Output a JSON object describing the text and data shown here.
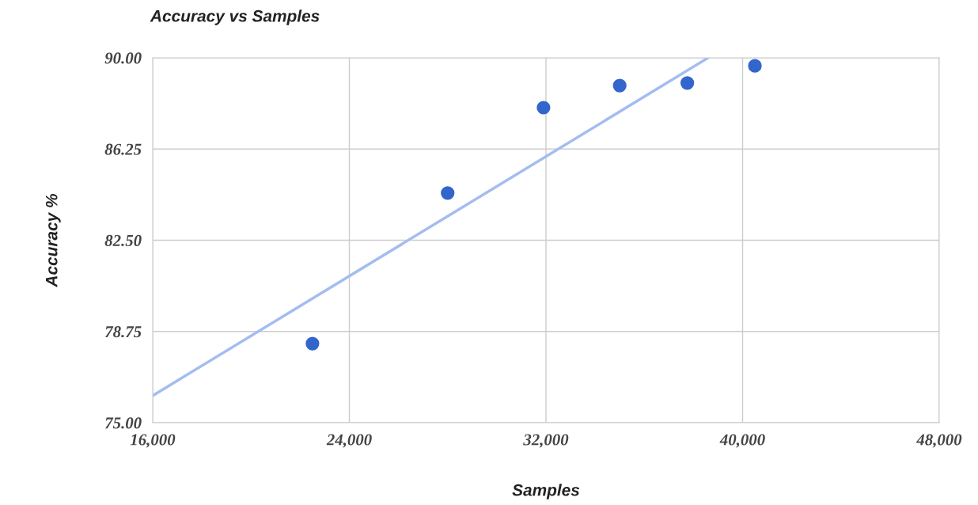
{
  "chart_data": {
    "type": "scatter",
    "title": "Accuracy vs Samples",
    "xlabel": "Samples",
    "ylabel": "Accuracy %",
    "series": [
      {
        "color": "#3366cc",
        "marker": "circle",
        "x": [
          22500,
          28000,
          31900,
          35000,
          37750,
          40500
        ],
        "values": [
          78.25,
          84.44,
          87.95,
          88.86,
          88.96,
          89.67
        ]
      },
      {
        "type": "line",
        "color": "#a4bdf0",
        "x": [
          16000,
          38600
        ],
        "values": [
          76.11,
          90
        ]
      }
    ],
    "xlim": [
      16000,
      48000
    ],
    "xticks": [
      {
        "value": 16000,
        "label": "16,000"
      },
      {
        "value": 24000,
        "label": "24,000"
      },
      {
        "value": 32000,
        "label": "32,000"
      },
      {
        "value": 40000,
        "label": "40,000"
      },
      {
        "value": 48000,
        "label": "48,000"
      }
    ],
    "ylim": [
      75,
      90
    ],
    "yticks": [
      {
        "value": 75,
        "label": "75.00"
      },
      {
        "value": 78.75,
        "label": "78.75"
      },
      {
        "value": 82.5,
        "label": "82.50"
      },
      {
        "value": 86.25,
        "label": "86.25"
      },
      {
        "value": 90,
        "label": "90.00"
      }
    ],
    "grid": true
  }
}
